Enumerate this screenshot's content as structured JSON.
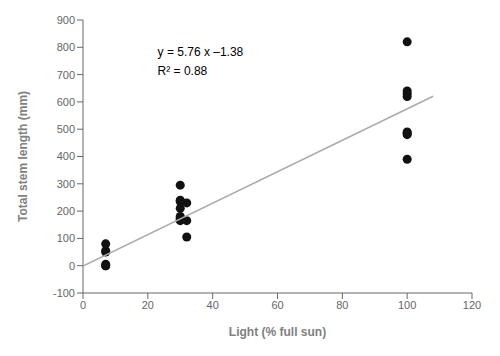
{
  "chart_data": {
    "type": "scatter",
    "xlabel": "Light (% full sun)",
    "ylabel": "Total stem length (mm)",
    "series": [
      {
        "type": "scatter",
        "color": "#111111",
        "marker": "circle",
        "x": [
          7,
          7,
          7,
          7,
          7,
          7,
          30,
          30,
          30,
          30,
          30,
          30,
          30,
          30,
          32,
          32,
          32,
          100,
          100,
          100,
          100,
          100,
          100,
          100,
          100
        ],
        "values": [
          0,
          0,
          5,
          50,
          55,
          80,
          165,
          170,
          175,
          180,
          210,
          235,
          240,
          295,
          105,
          165,
          230,
          390,
          480,
          485,
          490,
          620,
          630,
          640,
          820
        ]
      },
      {
        "type": "line",
        "color": "#aaaaaa",
        "x": [
          0,
          108
        ],
        "values": [
          -1.38,
          620.7
        ]
      }
    ],
    "annotations": [
      {
        "text": "y = 5.76 x –1.38",
        "x": 23,
        "y": 800
      },
      {
        "text": "R² = 0.88",
        "x": 23,
        "y": 730
      }
    ],
    "xlim": [
      0,
      120
    ],
    "ylim": [
      -100,
      900
    ],
    "xticks": [
      0,
      20,
      40,
      60,
      80,
      100,
      120
    ],
    "yticks": [
      -100,
      0,
      100,
      200,
      300,
      400,
      500,
      600,
      700,
      800,
      900
    ],
    "grid": false
  }
}
